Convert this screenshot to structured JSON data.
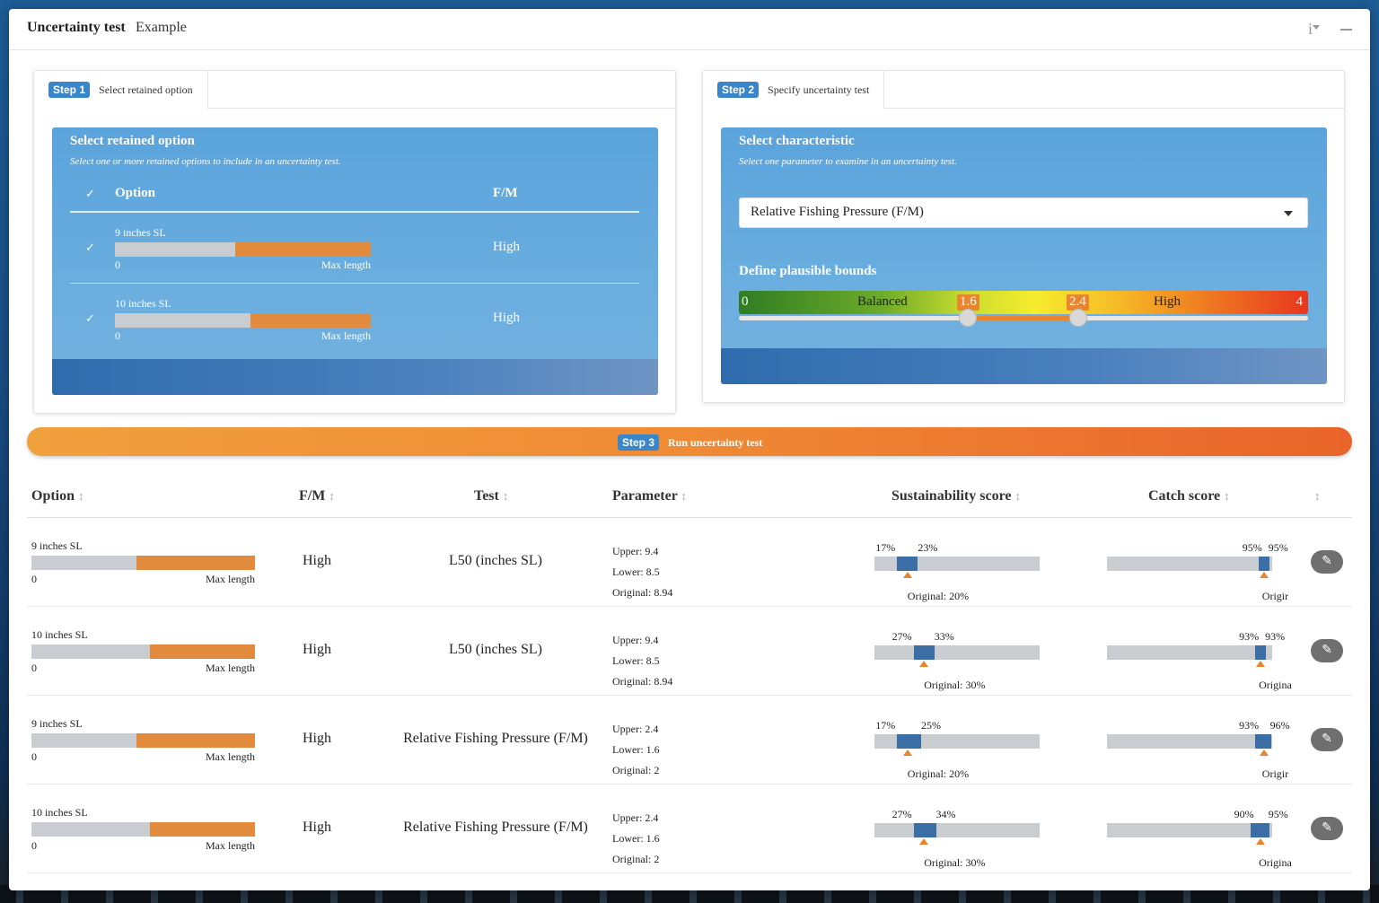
{
  "window": {
    "title": "Uncertainty test",
    "subtitle": "Example",
    "info_icon": "i"
  },
  "step1": {
    "badge": "Step 1",
    "tab_label": "Select retained option",
    "card_title": "Select retained option",
    "card_subtitle": "Select one or more retained options to include in an uncertainty test.",
    "col_option": "Option",
    "col_fm": "F/M",
    "check": "✓",
    "options": [
      {
        "name": "9 inches SL",
        "fill": 0.53,
        "min": "0",
        "max": "Max length",
        "fm": "High"
      },
      {
        "name": "10 inches SL",
        "fill": 0.47,
        "min": "0",
        "max": "Max length",
        "fm": "High"
      }
    ]
  },
  "step2": {
    "badge": "Step 2",
    "tab_label": "Specify uncertainty test",
    "card_title": "Select characteristic",
    "card_subtitle": "Select one parameter to examine in an uncertainty test.",
    "selected_parameter": "Relative Fishing Pressure (F/M)",
    "bounds_title": "Define plausible bounds",
    "scale_min": "0",
    "scale_max": "4",
    "zone_balanced": "Balanced",
    "zone_high": "High",
    "lower_bound": "1.6",
    "upper_bound": "2.4"
  },
  "step3": {
    "badge": "Step 3",
    "label": "Run uncertainty test"
  },
  "table": {
    "headers": {
      "option": "Option",
      "fm": "F/M",
      "test": "Test",
      "parameter": "Parameter",
      "sustainability": "Sustainability score",
      "catch": "Catch score"
    },
    "sort_icon": "↕",
    "edit_icon": "✎",
    "rows": [
      {
        "option": "9 inches SL",
        "fill": 0.53,
        "min": "0",
        "max": "Max length",
        "fm": "High",
        "test": "L50 (inches SL)",
        "upper": "Upper: 9.4",
        "lower": "Lower: 8.5",
        "original": "Original: 8.94",
        "sust_lo": "17%",
        "sust_hi": "23%",
        "sust_lo_v": 17,
        "sust_hi_v": 23,
        "sust_orig_v": 20,
        "sust_orig": "Original: 20%",
        "catch_lo": "95%",
        "catch_hi": "95%",
        "catch_lo_v": 95,
        "catch_hi_v": 95,
        "catch_orig_v": 95,
        "catch_orig": "Origir"
      },
      {
        "option": "10 inches SL",
        "fill": 0.47,
        "min": "0",
        "max": "Max length",
        "fm": "High",
        "test": "L50 (inches SL)",
        "upper": "Upper: 9.4",
        "lower": "Lower: 8.5",
        "original": "Original: 8.94",
        "sust_lo": "27%",
        "sust_hi": "33%",
        "sust_lo_v": 27,
        "sust_hi_v": 33,
        "sust_orig_v": 30,
        "sust_orig": "Original: 30%",
        "catch_lo": "93%",
        "catch_hi": "93%",
        "catch_lo_v": 93,
        "catch_hi_v": 93,
        "catch_orig_v": 93,
        "catch_orig": "Origina"
      },
      {
        "option": "9 inches SL",
        "fill": 0.53,
        "min": "0",
        "max": "Max length",
        "fm": "High",
        "test": "Relative Fishing Pressure (F/M)",
        "upper": "Upper: 2.4",
        "lower": "Lower: 1.6",
        "original": "Original: 2",
        "sust_lo": "17%",
        "sust_hi": "25%",
        "sust_lo_v": 17,
        "sust_hi_v": 25,
        "sust_orig_v": 20,
        "sust_orig": "Original: 20%",
        "catch_lo": "93%",
        "catch_hi": "96%",
        "catch_lo_v": 93,
        "catch_hi_v": 96,
        "catch_orig_v": 95,
        "catch_orig": "Origir"
      },
      {
        "option": "10 inches SL",
        "fill": 0.47,
        "min": "0",
        "max": "Max length",
        "fm": "High",
        "test": "Relative Fishing Pressure (F/M)",
        "upper": "Upper: 2.4",
        "lower": "Lower: 1.6",
        "original": "Original: 2",
        "sust_lo": "27%",
        "sust_hi": "34%",
        "sust_lo_v": 27,
        "sust_hi_v": 34,
        "sust_orig_v": 30,
        "sust_orig": "Original: 30%",
        "catch_lo": "90%",
        "catch_hi": "95%",
        "catch_lo_v": 90,
        "catch_hi_v": 95,
        "catch_orig_v": 93,
        "catch_orig": "Origina"
      }
    ]
  }
}
